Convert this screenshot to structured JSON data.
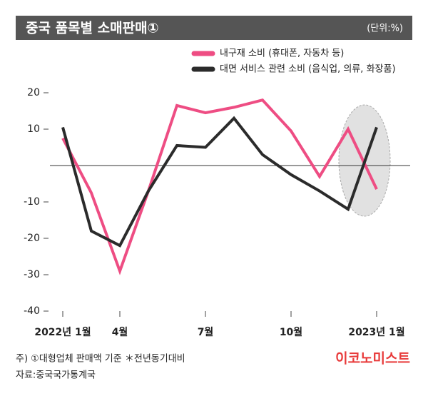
{
  "chart_data": {
    "type": "line",
    "title": "중국 품목별 소매판매①",
    "unit_note": "(단위:%)",
    "categories": [
      "2022년 1월",
      null,
      "4월",
      null,
      null,
      "7월",
      null,
      null,
      "10월",
      null,
      null,
      "2023년 1월"
    ],
    "series": [
      {
        "name": "내구재 소비 (휴대폰, 자동차 등)",
        "color": "#ee4d83",
        "values": [
          7.5,
          -7.5,
          -29,
          -7,
          16.5,
          14.5,
          16,
          18,
          9.5,
          -3,
          10,
          -6.5
        ]
      },
      {
        "name": "대면 서비스 관련 소비 (음식업, 의류, 화장품)",
        "color": "#2b2b2b",
        "values": [
          10.5,
          -18,
          -22,
          -7,
          5.5,
          5,
          13,
          3,
          -2.5,
          -7,
          -12,
          10.5
        ]
      }
    ],
    "ylim": [
      -40,
      20
    ],
    "yticks": [
      -40,
      -30,
      -20,
      -10,
      10,
      20
    ],
    "notes": [
      "주) ①대형업체 판매액 기준 ＊전년동기대비",
      "자료:중국국가통계국"
    ],
    "brand": "이코노미스트"
  }
}
